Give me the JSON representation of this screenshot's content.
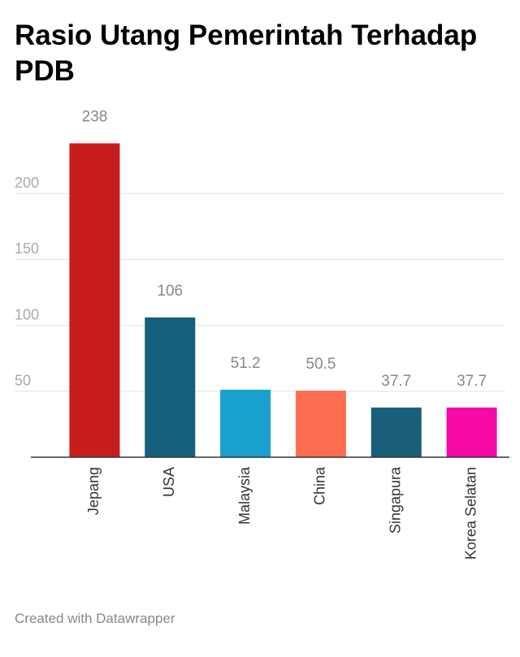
{
  "chart_data": {
    "type": "bar",
    "title": "Rasio Utang Pemerintah Terhadap PDB",
    "categories": [
      "Jepang",
      "USA",
      "Malaysia",
      "China",
      "Singapura",
      "Korea Selatan"
    ],
    "values": [
      238,
      106,
      51.2,
      50.5,
      37.7,
      37.7
    ],
    "colors": [
      "#c71e1d",
      "#15607a",
      "#18a1cd",
      "#fe6e52",
      "#1a5f78",
      "#f50aa5"
    ],
    "ylim": [
      0,
      250
    ],
    "yticks": [
      50,
      100,
      150,
      200
    ],
    "grid": true,
    "footer": "Created with Datawrapper"
  }
}
